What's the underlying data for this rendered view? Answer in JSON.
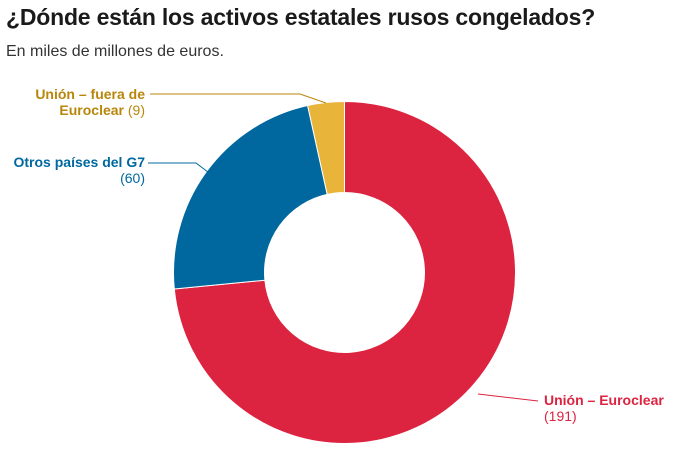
{
  "chart_data": {
    "type": "pie",
    "variant": "donut",
    "title": "¿Dónde están los activos estatales rusos congelados?",
    "subtitle": "En miles de millones de euros.",
    "slices": [
      {
        "label_line1": "Unión – Euroclear",
        "label_line2": "",
        "value": 191,
        "value_text": "(191)",
        "color": "#dc2340"
      },
      {
        "label_line1": "Otros países del G7",
        "label_line2": "",
        "value": 60,
        "value_text": "(60)",
        "color": "#00689f"
      },
      {
        "label_line1": "Unión – fuera de",
        "label_line2": "Euroclear",
        "value": 9,
        "value_text": "(9)",
        "color": "#e9b43a",
        "label_color": "#b8860b"
      }
    ]
  }
}
